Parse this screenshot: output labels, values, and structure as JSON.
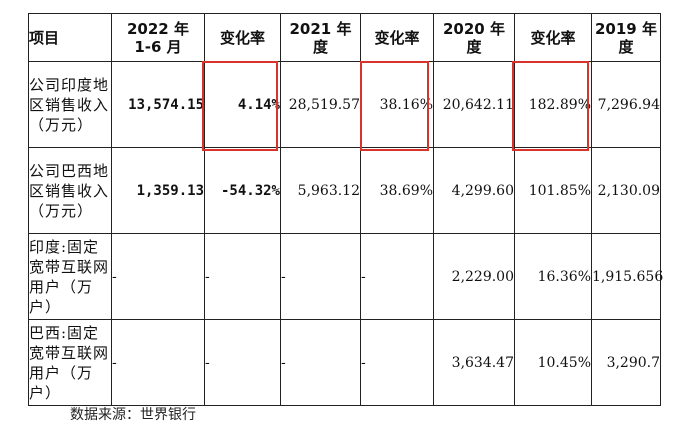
{
  "headers": [
    "项目",
    "2022 年\n1-6 月",
    "变化率",
    "2021 年\n度",
    "变化率",
    "2020 年\n度",
    "变化率",
    "2019 年\n度"
  ],
  "rows": [
    {
      "label": "公司印度地区销售收入（万元）",
      "cells": [
        "13,574.15",
        "4.14%",
        "28,519.57",
        "38.16%",
        "20,642.11",
        "182.89%",
        "7,296.94"
      ]
    },
    {
      "label": "公司巴西地区销售收入（万元）",
      "cells": [
        "1,359.13",
        "-54.32%",
        "5,963.12",
        "38.69%",
        "4,299.60",
        "101.85%",
        "2,130.09"
      ]
    },
    {
      "label": "印度:固定宽带互联网用户（万户）",
      "cells": [
        "-",
        "-",
        "-",
        "-",
        "2,229.00",
        "16.36%",
        "1,915.656"
      ]
    },
    {
      "label": "巴西:固定宽带互联网用户（万户）",
      "cells": [
        "-",
        "-",
        "-",
        "-",
        "3,634.47",
        "10.45%",
        "3,290.7"
      ]
    }
  ],
  "source": "数据来源：世界银行",
  "highlight_color": "#d9342b"
}
